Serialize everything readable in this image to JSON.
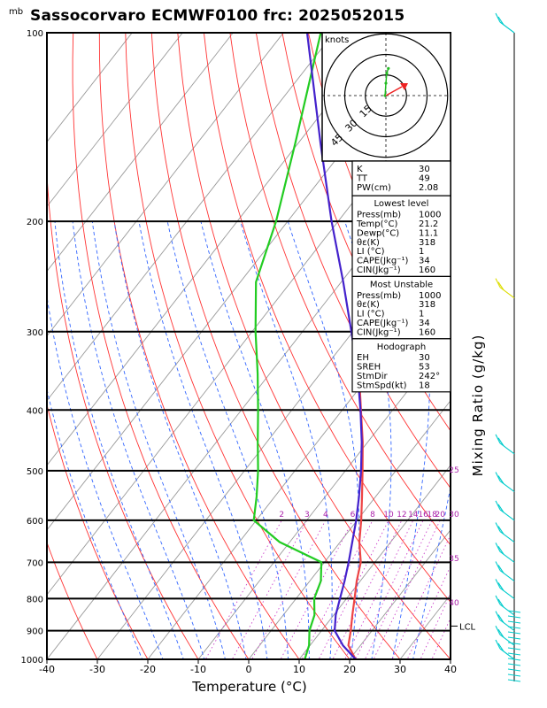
{
  "title": "Sassocorvaro ECMWF0100  frc: 2025052015",
  "pressure_unit": "mb",
  "xlabel": "Temperature (°C)",
  "right_label": "Mixing Ratio (g/kg)",
  "hodograph_unit": "knots",
  "hodograph_rings": [
    "15",
    "30",
    "45"
  ],
  "lcl_label": "LCL",
  "colors": {
    "temperature": "#ee4444",
    "dewpoint": "#22cc22",
    "parcel": "#4422cc",
    "isotherm": "#999999",
    "dry_adiabat": "#ff3333",
    "moist_adiabat": "#3366ff",
    "mixing_ratio": "#cc44cc",
    "wind_barb": "#00cccc",
    "hodo_arrow": "#ee2222"
  },
  "indices": {
    "rows": [
      {
        "label": "K",
        "value": "30"
      },
      {
        "label": "TT",
        "value": "49"
      },
      {
        "label": "PW(cm)",
        "value": "2.08"
      }
    ]
  },
  "lowest_level": {
    "header": "Lowest level",
    "rows": [
      {
        "label": "Press(mb)",
        "value": "1000"
      },
      {
        "label": "Temp(°C)",
        "value": "21.2"
      },
      {
        "label": "Dewp(°C)",
        "value": "11.1"
      },
      {
        "label": "θε(K)",
        "value": "318"
      },
      {
        "label": "LI (°C)",
        "value": "1"
      },
      {
        "label": "CAPE(Jkg⁻¹)",
        "value": "34"
      },
      {
        "label": "CIN(Jkg⁻¹)",
        "value": "160"
      }
    ]
  },
  "most_unstable": {
    "header": "Most Unstable",
    "rows": [
      {
        "label": "Press(mb)",
        "value": "1000"
      },
      {
        "label": "θε(K)",
        "value": "318"
      },
      {
        "label": "LI (°C)",
        "value": "1"
      },
      {
        "label": "CAPE(Jkg⁻¹)",
        "value": "34"
      },
      {
        "label": "CIN(Jkg⁻¹)",
        "value": "160"
      }
    ]
  },
  "hodograph": {
    "header": "Hodograph",
    "rows": [
      {
        "label": "EH",
        "value": "30"
      },
      {
        "label": "SREH",
        "value": "53"
      },
      {
        "label": "StmDir",
        "value": "242°"
      },
      {
        "label": "StmSpd(kt)",
        "value": "18"
      }
    ]
  },
  "chart_data": {
    "type": "line",
    "title": "Sassocorvaro ECMWF0100  frc: 2025052015",
    "xlabel": "Temperature (°C)",
    "ylabel": "mb",
    "xlim": [
      -40,
      40
    ],
    "ylim": [
      1000,
      100
    ],
    "y_scale": "log",
    "x_ticks": [
      "-40",
      "-30",
      "-20",
      "-10",
      "0",
      "10",
      "20",
      "30",
      "40"
    ],
    "y_ticks": [
      "100",
      "200",
      "300",
      "400",
      "500",
      "600",
      "700",
      "800",
      "900",
      "1000"
    ],
    "mixing_ratio_labels": [
      "2",
      "3",
      "4",
      "6",
      "8",
      "10",
      "12",
      "14",
      "16",
      "18",
      "20",
      "25",
      "30",
      "35",
      "40"
    ],
    "series": [
      {
        "key": "temperature",
        "points": [
          [
            1000,
            21.2
          ],
          [
            950,
            17.6
          ],
          [
            900,
            15.8
          ],
          [
            850,
            13.7
          ],
          [
            800,
            11.6
          ],
          [
            750,
            9.3
          ],
          [
            700,
            7.2
          ],
          [
            650,
            3.8
          ],
          [
            600,
            0.8
          ],
          [
            550,
            -2.7
          ],
          [
            500,
            -6.6
          ],
          [
            450,
            -11
          ],
          [
            400,
            -16.3
          ],
          [
            350,
            -22.3
          ],
          [
            300,
            -29.3
          ],
          [
            250,
            -37.5
          ],
          [
            200,
            -37.8
          ],
          [
            150,
            -40
          ],
          [
            100,
            -43
          ]
        ]
      },
      {
        "key": "dewpoint",
        "points": [
          [
            1000,
            11.1
          ],
          [
            950,
            9.8
          ],
          [
            900,
            7.6
          ],
          [
            850,
            6.2
          ],
          [
            800,
            3.6
          ],
          [
            750,
            2.2
          ],
          [
            700,
            -0.6
          ],
          [
            650,
            -12
          ],
          [
            600,
            -20.5
          ],
          [
            550,
            -23.6
          ],
          [
            500,
            -27.3
          ],
          [
            450,
            -31.8
          ],
          [
            400,
            -36.7
          ],
          [
            350,
            -42.4
          ],
          [
            300,
            -49.3
          ],
          [
            250,
            -56.9
          ],
          [
            200,
            -62.3
          ],
          [
            150,
            -70.6
          ],
          [
            100,
            -82.6
          ]
        ]
      },
      {
        "key": "parcel",
        "points": [
          [
            1000,
            21.2
          ],
          [
            950,
            16.5
          ],
          [
            900,
            12.6
          ],
          [
            850,
            10.4
          ],
          [
            800,
            8.7
          ],
          [
            750,
            6.9
          ],
          [
            700,
            4.8
          ],
          [
            650,
            2.4
          ],
          [
            600,
            -0.2
          ],
          [
            550,
            -3.3
          ],
          [
            500,
            -6.9
          ],
          [
            450,
            -11.2
          ],
          [
            400,
            -16.4
          ],
          [
            350,
            -22.6
          ],
          [
            300,
            -30.3
          ],
          [
            250,
            -39.6
          ],
          [
            200,
            -51.3
          ],
          [
            150,
            -65.6
          ],
          [
            100,
            -85.3
          ]
        ]
      }
    ],
    "lcl_pressure": 885,
    "hodograph_points_kt": [
      [
        -1,
        0
      ],
      [
        0,
        10
      ],
      [
        1,
        18
      ],
      [
        3,
        22
      ],
      [
        7,
        3
      ],
      [
        11,
        6
      ]
    ],
    "storm_motion_kt": {
      "dir": 242,
      "speed": 18
    }
  }
}
